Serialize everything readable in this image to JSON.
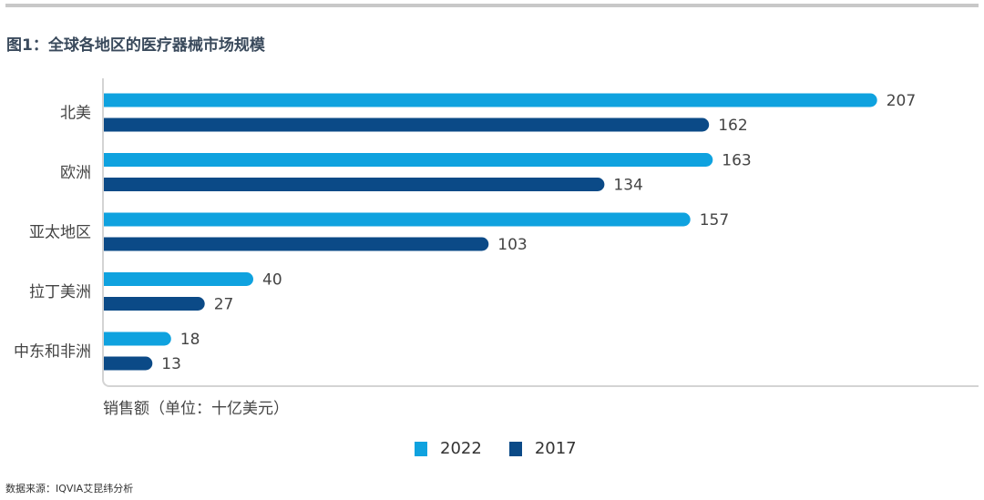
{
  "title": "图1：全球各地区的医疗器械市场规模",
  "source": "数据来源：IQVIA艾昆纬分析",
  "chart_data": {
    "type": "bar",
    "orientation": "horizontal",
    "title": "图1：全球各地区的医疗器械市场规模",
    "xlabel": "销售额（单位：十亿美元）",
    "ylabel": "",
    "categories": [
      "北美",
      "欧洲",
      "亚太地区",
      "拉丁美洲",
      "中东和非洲"
    ],
    "series": [
      {
        "name": "2022",
        "color": "#0fa2df",
        "values": [
          207,
          163,
          157,
          40,
          18
        ]
      },
      {
        "name": "2017",
        "color": "#0b4a87",
        "values": [
          162,
          134,
          103,
          27,
          13
        ]
      }
    ],
    "xlim": [
      0,
      230
    ],
    "grid": false,
    "legend": "bottom",
    "data_labels": true
  }
}
